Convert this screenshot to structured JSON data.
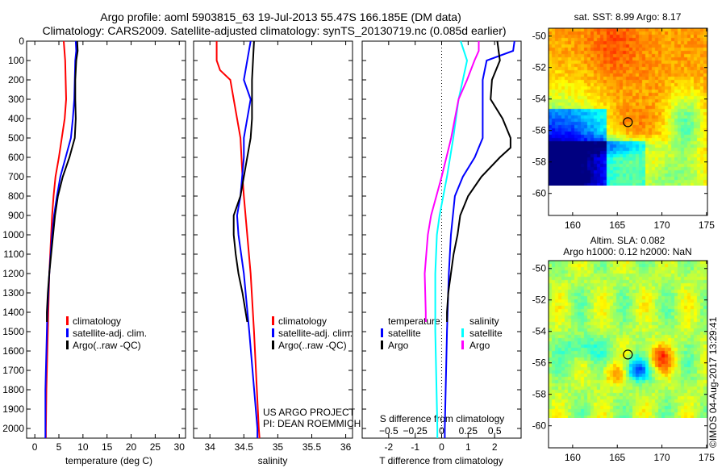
{
  "title_line1": "Argo profile: aoml 5903815_63 19-Jul-2013 55.47S 166.185E (DM data)",
  "title_line2": "Climatology: CARS2009. Satellite-adjusted climatology: synTS_20130719.nc (0.085d earlier)",
  "credit": "US ARGO PROJECT",
  "pi": "PI: DEAN ROEMMICH",
  "stamp": "©IMOS 04-Aug-2017 13:29:41",
  "colors": {
    "climatology": "#ff0000",
    "satellite": "#0000ff",
    "argo": "#000000",
    "s_satellite": "#00ffff",
    "s_argo": "#ff00ff"
  },
  "chart_data": [
    {
      "type": "line",
      "xlabel": "temperature (deg C)",
      "ylabel": "depth",
      "xlim": [
        -1.7,
        31.3
      ],
      "ylim": [
        2050,
        0
      ],
      "xticks": [
        0,
        5,
        10,
        15,
        20,
        25,
        30
      ],
      "yticks": [
        0,
        100,
        200,
        300,
        400,
        500,
        600,
        700,
        800,
        900,
        1000,
        1100,
        1200,
        1300,
        1400,
        1500,
        1600,
        1700,
        1800,
        1900,
        2000
      ],
      "legend": [
        "climatology",
        "satellite-adj. clim.",
        "Argo(..raw -QC)"
      ],
      "series": [
        {
          "name": "climatology",
          "color": "#ff0000",
          "depth": [
            0,
            100,
            200,
            300,
            400,
            500,
            600,
            700,
            800,
            900,
            1000,
            1200,
            1400,
            1600,
            1800,
            2000,
            2050
          ],
          "values": [
            6.0,
            6.3,
            6.4,
            6.5,
            6.2,
            5.6,
            5.0,
            4.3,
            3.9,
            3.6,
            3.4,
            3.0,
            2.8,
            2.6,
            2.4,
            2.3,
            2.3
          ]
        },
        {
          "name": "satellite-adj. clim.",
          "color": "#0000ff",
          "depth": [
            0,
            50,
            100,
            200,
            300,
            400,
            500,
            600,
            700,
            800,
            900,
            1000,
            1200,
            1400,
            1600,
            1800,
            2000,
            2050
          ],
          "values": [
            8.5,
            8.6,
            8.4,
            8.3,
            8.2,
            7.9,
            7.5,
            6.4,
            5.3,
            4.6,
            4.0,
            3.6,
            3.0,
            2.6,
            2.4,
            2.2,
            2.2,
            2.2
          ]
        },
        {
          "name": "Argo(..raw -QC)",
          "color": "#000000",
          "depth": [
            0,
            50,
            100,
            200,
            300,
            400,
            500,
            600,
            700,
            800,
            900,
            1000,
            1100,
            1200,
            1300,
            1400,
            1450
          ],
          "values": [
            8.8,
            8.9,
            8.6,
            8.4,
            8.4,
            8.5,
            8.3,
            7.2,
            5.8,
            4.8,
            4.2,
            3.8,
            3.4,
            3.0,
            2.7,
            2.5,
            2.5
          ]
        }
      ]
    },
    {
      "type": "line",
      "xlabel": "salinity",
      "xlim": [
        33.76,
        36.1
      ],
      "ylim": [
        2050,
        0
      ],
      "xticks": [
        34,
        34.5,
        35,
        35.5,
        36
      ],
      "legend": [
        "climatology",
        "satellite-adj. clim.",
        "Argo(..raw -QC)"
      ],
      "series": [
        {
          "name": "climatology",
          "color": "#ff0000",
          "depth": [
            0,
            100,
            150,
            200,
            300,
            400,
            500,
            700,
            800,
            1000,
            1200,
            1500,
            2000,
            2050
          ],
          "values": [
            34.1,
            34.1,
            34.15,
            34.3,
            34.35,
            34.4,
            34.45,
            34.48,
            34.5,
            34.55,
            34.6,
            34.65,
            34.72,
            34.73
          ]
        },
        {
          "name": "satellite-adj. clim.",
          "color": "#0000ff",
          "depth": [
            0,
            100,
            200,
            300,
            400,
            500,
            600,
            800,
            900,
            1000,
            1200,
            1500,
            2000,
            2050
          ],
          "values": [
            34.6,
            34.55,
            34.5,
            34.6,
            34.55,
            34.5,
            34.5,
            34.45,
            34.4,
            34.42,
            34.5,
            34.58,
            34.7,
            34.7
          ]
        },
        {
          "name": "Argo(..raw -QC)",
          "color": "#000000",
          "depth": [
            0,
            200,
            400,
            500,
            600,
            700,
            800,
            900,
            1000,
            1100,
            1200,
            1300,
            1450
          ],
          "values": [
            34.65,
            34.62,
            34.62,
            34.6,
            34.55,
            34.5,
            34.45,
            34.35,
            34.35,
            34.38,
            34.42,
            34.48,
            34.55
          ]
        }
      ]
    },
    {
      "type": "line",
      "xlabel": "T difference from climatology",
      "xlabel2": "S difference from climatology",
      "xlim": [
        -3,
        3
      ],
      "ylim": [
        2050,
        0
      ],
      "xticks": [
        -2,
        -1,
        0,
        1,
        2
      ],
      "xticks_s": [
        -0.5,
        -0.25,
        0,
        0.25,
        0.5
      ],
      "s_to_t_scale": 4,
      "legend_temperature": {
        "title": "temperature",
        "items": [
          "satellite",
          "Argo"
        ]
      },
      "legend_salinity": {
        "title": "salinity",
        "items": [
          "satellite",
          "Argo"
        ]
      },
      "series": [
        {
          "name": "T satellite",
          "color": "#0000ff",
          "kind": "T",
          "depth": [
            0,
            50,
            100,
            200,
            300,
            400,
            500,
            600,
            700,
            800,
            1000,
            1200,
            1500,
            2000,
            2050
          ],
          "values": [
            2.75,
            2.7,
            1.7,
            1.55,
            1.55,
            1.55,
            1.55,
            1.25,
            0.8,
            0.5,
            0.35,
            0.27,
            0.2,
            0.12,
            0.12
          ]
        },
        {
          "name": "T Argo",
          "color": "#000000",
          "kind": "T",
          "depth": [
            0,
            100,
            200,
            300,
            400,
            500,
            550,
            600,
            700,
            800,
            900,
            1000,
            1100,
            1200,
            1300,
            1400,
            1450
          ],
          "values": [
            2.1,
            2.2,
            1.9,
            1.85,
            2.3,
            2.6,
            2.6,
            2.2,
            1.5,
            1.0,
            0.7,
            0.6,
            0.45,
            0.35,
            0.25,
            0.2,
            0.2
          ]
        },
        {
          "name": "S satellite",
          "color": "#00ffff",
          "kind": "S",
          "depth": [
            0,
            100,
            200,
            300,
            500,
            700,
            900,
            1000,
            1200,
            1500,
            2000,
            2050
          ],
          "values": [
            0.18,
            0.24,
            0.2,
            0.16,
            0.11,
            0.05,
            -0.02,
            -0.045,
            -0.06,
            -0.06,
            -0.04,
            -0.04
          ]
        },
        {
          "name": "S Argo",
          "color": "#ff00ff",
          "kind": "S",
          "depth": [
            0,
            50,
            100,
            200,
            300,
            500,
            700,
            900,
            1000,
            1200,
            1400,
            1450
          ],
          "values": [
            0.35,
            0.35,
            0.31,
            0.24,
            0.16,
            0.09,
            0.0,
            -0.1,
            -0.13,
            -0.16,
            -0.15,
            -0.15
          ]
        }
      ]
    },
    {
      "type": "heatmap",
      "title": "sat. SST: 8.99 Argo: 8.17",
      "xlim": [
        157.3,
        175.1
      ],
      "ylim": [
        -61.4,
        -49.5
      ],
      "xticks": [
        160,
        165,
        170,
        175
      ],
      "yticks": [
        -50,
        -52,
        -54,
        -56,
        -58,
        -60
      ],
      "argo_position": {
        "lon": 166.185,
        "lat": -55.47
      }
    },
    {
      "type": "heatmap",
      "title": "Altim. SLA: 0.082",
      "subtitle": "Argo h1000: 0.12 h2000: NaN",
      "xlim": [
        157.3,
        175.1
      ],
      "ylim": [
        -61.4,
        -49.5
      ],
      "xticks": [
        160,
        165,
        170,
        175
      ],
      "yticks": [
        -50,
        -52,
        -54,
        -56,
        -58,
        -60
      ],
      "argo_position": {
        "lon": 166.185,
        "lat": -55.47
      }
    }
  ]
}
